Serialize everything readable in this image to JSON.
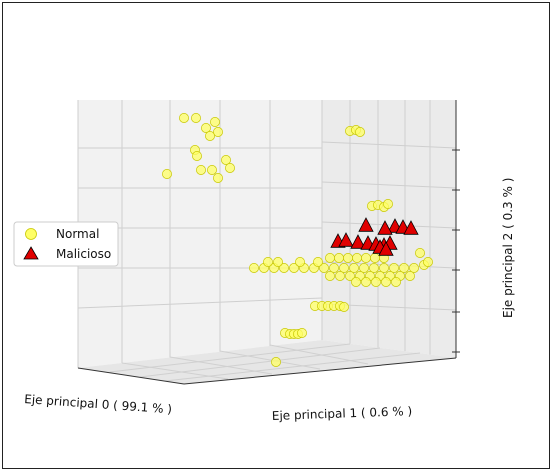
{
  "chart_data": {
    "type": "scatter",
    "projection": "3d",
    "xlabel": "Eje principal 0 ( 99.1 % )",
    "ylabel": "Eje principal 1 ( 0.6 % )",
    "zlabel": "Eje principal 2 ( 0.3 % )",
    "legend_position": "left",
    "grid": true,
    "series": [
      {
        "name": "Normal",
        "marker": "circle",
        "color": "#ffff66",
        "edge_color": "#c8c800",
        "points": [
          [
            184,
            118
          ],
          [
            196,
            118
          ],
          [
            206,
            128
          ],
          [
            215,
            122
          ],
          [
            218,
            132
          ],
          [
            210,
            136
          ],
          [
            195,
            150
          ],
          [
            197,
            156
          ],
          [
            212,
            170
          ],
          [
            226,
            160
          ],
          [
            230,
            168
          ],
          [
            218,
            178
          ],
          [
            201,
            170
          ],
          [
            167,
            174
          ],
          [
            350,
            131
          ],
          [
            356,
            130
          ],
          [
            360,
            132
          ],
          [
            372,
            206
          ],
          [
            378,
            205
          ],
          [
            384,
            207
          ],
          [
            388,
            204
          ],
          [
            330,
            258
          ],
          [
            339,
            258
          ],
          [
            348,
            258
          ],
          [
            357,
            258
          ],
          [
            366,
            258
          ],
          [
            375,
            258
          ],
          [
            384,
            258
          ],
          [
            254,
            268
          ],
          [
            264,
            268
          ],
          [
            274,
            268
          ],
          [
            284,
            268
          ],
          [
            294,
            268
          ],
          [
            304,
            268
          ],
          [
            314,
            268
          ],
          [
            324,
            268
          ],
          [
            334,
            268
          ],
          [
            344,
            268
          ],
          [
            354,
            268
          ],
          [
            364,
            268
          ],
          [
            374,
            268
          ],
          [
            384,
            268
          ],
          [
            394,
            268
          ],
          [
            404,
            268
          ],
          [
            414,
            268
          ],
          [
            424,
            265
          ],
          [
            268,
            262
          ],
          [
            278,
            262
          ],
          [
            300,
            262
          ],
          [
            318,
            262
          ],
          [
            420,
            253
          ],
          [
            428,
            262
          ],
          [
            330,
            276
          ],
          [
            340,
            276
          ],
          [
            350,
            276
          ],
          [
            360,
            276
          ],
          [
            370,
            276
          ],
          [
            380,
            276
          ],
          [
            390,
            276
          ],
          [
            400,
            276
          ],
          [
            410,
            276
          ],
          [
            356,
            282
          ],
          [
            366,
            282
          ],
          [
            376,
            282
          ],
          [
            386,
            282
          ],
          [
            396,
            282
          ],
          [
            315,
            306
          ],
          [
            322,
            306
          ],
          [
            328,
            306
          ],
          [
            334,
            306
          ],
          [
            340,
            306
          ],
          [
            344,
            307
          ],
          [
            285,
            333
          ],
          [
            290,
            334
          ],
          [
            294,
            334
          ],
          [
            298,
            334
          ],
          [
            302,
            333
          ],
          [
            276,
            362
          ]
        ]
      },
      {
        "name": "Malicioso",
        "marker": "triangle",
        "color": "#e00000",
        "edge_color": "#000000",
        "points": [
          [
            366,
            225
          ],
          [
            395,
            226
          ],
          [
            403,
            227
          ],
          [
            411,
            228
          ],
          [
            385,
            228
          ],
          [
            338,
            241
          ],
          [
            346,
            240
          ],
          [
            358,
            242
          ],
          [
            368,
            243
          ],
          [
            376,
            244
          ],
          [
            384,
            245
          ],
          [
            390,
            243
          ],
          [
            380,
            247
          ],
          [
            386,
            249
          ]
        ]
      }
    ]
  }
}
